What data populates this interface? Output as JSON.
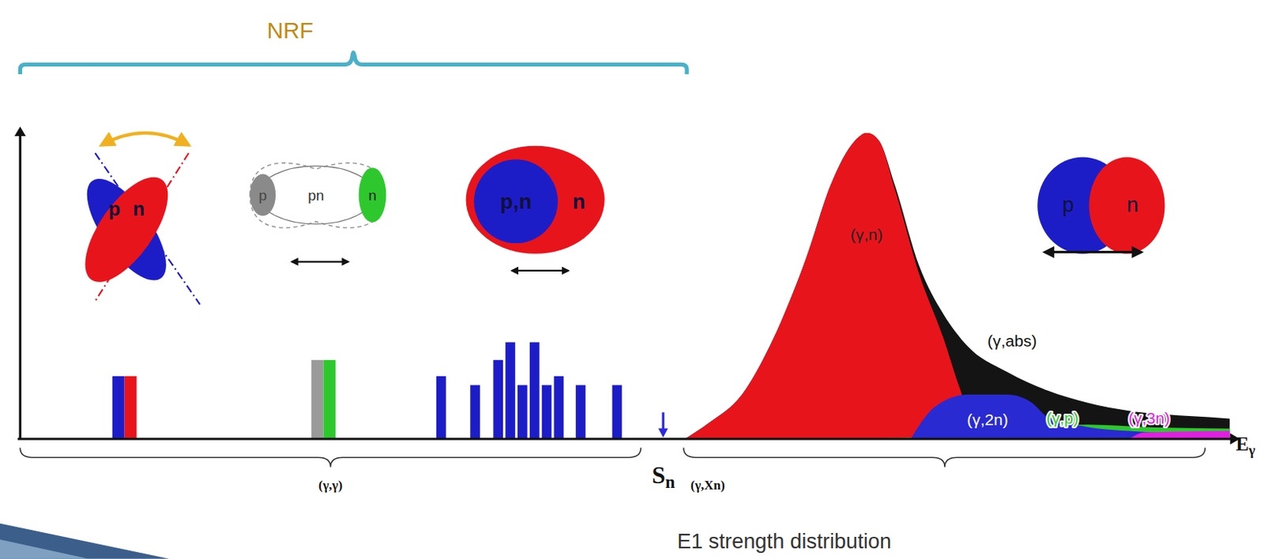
{
  "chart_data": {
    "type": "bar",
    "xlim": [
      0,
      100
    ],
    "ylim": [
      0,
      100
    ],
    "tick_labels": false,
    "grid": false,
    "x_label": {
      "text": "E",
      "subscript": "γ"
    },
    "threshold": {
      "x": 53.0,
      "text": "S",
      "subscript": "n"
    },
    "bars": {
      "x": [
        8.6,
        25.0,
        34.7,
        37.5,
        39.4,
        40.4,
        41.4,
        42.4,
        43.4,
        44.4,
        46.2,
        49.2
      ],
      "values": [
        20.5,
        25.8,
        20.5,
        17.6,
        25.8,
        31.6,
        17.6,
        31.6,
        17.6,
        20.5,
        17.6,
        17.6
      ],
      "colors": [
        [
          "#1d1dc8",
          "#e8141c"
        ],
        [
          "#9a9a9a",
          "#2ec82e"
        ],
        [
          "#1d1dc8"
        ],
        [
          "#1d1dc8"
        ],
        [
          "#1d1dc8"
        ],
        [
          "#1d1dc8"
        ],
        [
          "#1d1dc8"
        ],
        [
          "#1d1dc8"
        ],
        [
          "#1d1dc8"
        ],
        [
          "#1d1dc8"
        ],
        [
          "#1d1dc8"
        ],
        [
          "#1d1dc8"
        ]
      ]
    },
    "series": [
      {
        "name": "(γ,abs)",
        "type": "area",
        "color": "#141414",
        "x": [
          54.8,
          56.8,
          59.5,
          62.1,
          64.8,
          66.8,
          68.8,
          69.8,
          70.8,
          72.1,
          74.1,
          76.1,
          78.1,
          81.4,
          84.7,
          88.0,
          91.4,
          94.7,
          98.0,
          99.7
        ],
        "values": [
          0,
          5.3,
          14.5,
          32.9,
          59.2,
          82.9,
          97.4,
          100,
          97.4,
          82.9,
          56.6,
          40.8,
          30.3,
          21.8,
          15.8,
          11.8,
          9.2,
          7.9,
          7.1,
          6.6
        ]
      },
      {
        "name": "(γ,n)",
        "type": "area",
        "color": "#e8141c",
        "x": [
          54.8,
          56.8,
          59.5,
          62.1,
          64.8,
          66.8,
          68.8,
          69.8,
          70.8,
          72.1,
          74.1,
          76.1,
          77.4,
          78.7,
          80.1
        ],
        "values": [
          0,
          5.3,
          14.5,
          32.9,
          59.2,
          82.9,
          97.4,
          100,
          97.4,
          81.6,
          53.9,
          32.9,
          17.1,
          3.9,
          0
        ]
      },
      {
        "name": "(γ,p)",
        "type": "area",
        "color": "#2ec82e",
        "x": [
          67.4,
          78.1,
          84.1,
          88.0,
          92.7,
          99.7
        ],
        "values": [
          0,
          1.1,
          3.9,
          4.7,
          3.9,
          3.4
        ]
      },
      {
        "name": "(γ,2n)",
        "type": "area",
        "color": "#2a2ad2",
        "x": [
          73.4,
          75.4,
          78.1,
          81.4,
          83.4,
          84.7,
          88.0,
          91.4,
          99.7
        ],
        "values": [
          0,
          10.5,
          14.5,
          14.5,
          11.8,
          7.1,
          3.9,
          2.6,
          1.3
        ]
      },
      {
        "name": "(γ,3n)",
        "type": "area",
        "color": "#e020e0",
        "x": [
          91.4,
          92.7,
          99.7
        ],
        "values": [
          0,
          2.1,
          2.6
        ]
      }
    ],
    "annotations": {
      "bracket": "NRF",
      "range_below": "(γ,γ)",
      "range_above": "(γ,Xn)",
      "caption": "E1 strength distribution"
    },
    "illustrations": [
      [
        "p",
        "n"
      ],
      [
        "p",
        "pn",
        "n"
      ],
      [
        "p,n",
        "n"
      ],
      [
        "p",
        "n"
      ]
    ]
  }
}
